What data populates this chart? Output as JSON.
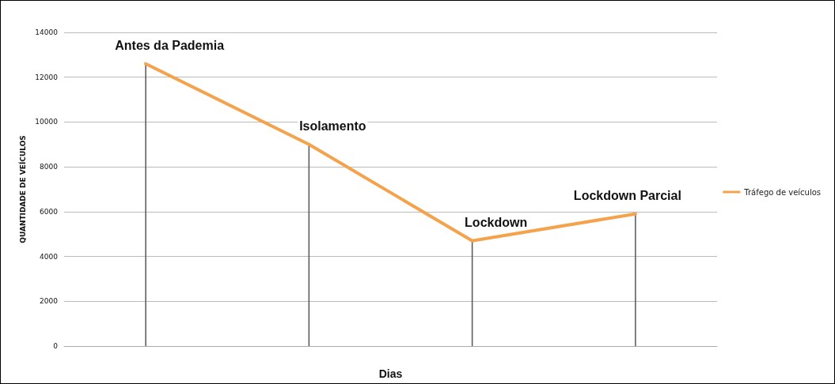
{
  "chart_data": {
    "type": "line",
    "xlabel": "Dias",
    "ylabel": "QUANTIDADE DE VEÍCULOS",
    "categories": [
      null,
      null,
      null,
      null
    ],
    "series": [
      {
        "name": "Tráfego de veículos",
        "color": "#f4a24c",
        "values": [
          12600,
          9000,
          4700,
          5900
        ]
      },
      {
        "type": "bar",
        "color": "#555555",
        "values": [
          12600,
          9000,
          4700,
          5900
        ]
      }
    ],
    "annotations": [
      "Antes da Pademia",
      "Isolamento",
      "Lockdown",
      "Lockdown Parcial"
    ],
    "ylim": [
      0,
      14000
    ],
    "yticks": [
      0,
      2000,
      4000,
      6000,
      8000,
      10000,
      12000,
      14000
    ],
    "grid": "y",
    "legend": "right",
    "marker": "none",
    "line_style": "solid"
  }
}
